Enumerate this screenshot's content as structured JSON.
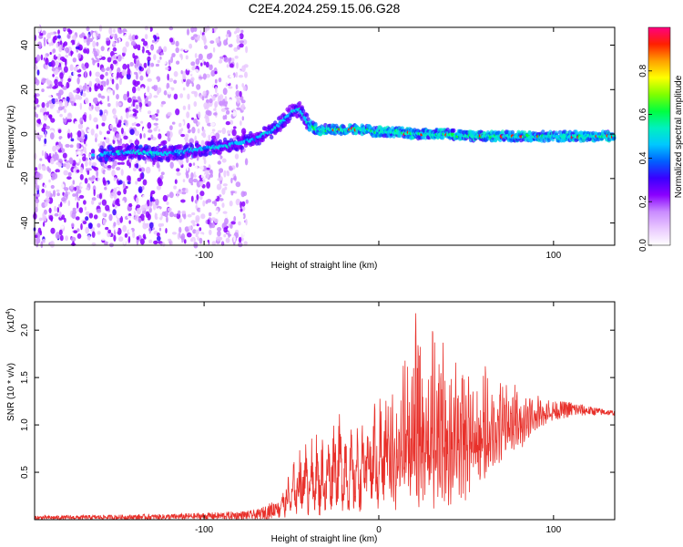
{
  "figure": {
    "title": "C2E4.2024.259.15.06.G28"
  },
  "chart_data": [
    {
      "type": "heatmap",
      "title": "",
      "xlabel": "Height of straight line (km)",
      "ylabel": "Frequency (Hz)",
      "xlim": [
        -197,
        135
      ],
      "ylim": [
        -50,
        48
      ],
      "xticks": [
        -100,
        0,
        100
      ],
      "xtick_labels": [
        "-100",
        "",
        "100"
      ],
      "yticks": [
        -40,
        -20,
        0,
        20,
        40
      ],
      "ytick_labels": [
        "-40",
        "-20",
        "0",
        "20",
        "40"
      ],
      "colorbar": {
        "label": "Normalized spectral amplitude",
        "range": [
          0,
          1
        ],
        "ticks": [
          0.0,
          0.2,
          0.4,
          0.6,
          0.8
        ],
        "tick_labels": [
          "0.0",
          "0.2",
          "0.4",
          "0.6",
          "0.8"
        ],
        "colormap": [
          "#ffffff",
          "#e9c8ff",
          "#c98bff",
          "#8a00ff",
          "#3a00ff",
          "#0060ff",
          "#00c8ff",
          "#00f0c0",
          "#00ff40",
          "#80ff00",
          "#ffff00",
          "#ffa000",
          "#ff2000",
          "#ff0080"
        ]
      },
      "ridge": {
        "x": [
          -160,
          -140,
          -125,
          -115,
          -105,
          -95,
          -85,
          -75,
          -70,
          -65,
          -60,
          -55,
          -50,
          -45,
          -40,
          -35,
          -30,
          -20,
          -10,
          0,
          10,
          20,
          30,
          40,
          50,
          60,
          70,
          80,
          90,
          100,
          110,
          120,
          135
        ],
        "y": [
          -9,
          -8,
          -9,
          -8,
          -7,
          -6,
          -5,
          -3,
          -2,
          0,
          2,
          6,
          10,
          11,
          4,
          2,
          2,
          2,
          2,
          1,
          1,
          0,
          0,
          0,
          -1,
          -1,
          -1,
          -1,
          -1,
          -1,
          -1,
          -1,
          -1
        ]
      }
    },
    {
      "type": "line",
      "title": "",
      "xlabel": "Height of straight line (km)",
      "ylabel": "SNR (10 * v/v)",
      "multiplier_label": "(x10",
      "multiplier_exp": "4",
      "multiplier_close": ")",
      "xlim": [
        -197,
        135
      ],
      "ylim": [
        0,
        23000
      ],
      "xticks": [
        -100,
        0,
        100
      ],
      "xtick_labels": [
        "-100",
        "0",
        "100"
      ],
      "yticks": [
        5000,
        10000,
        15000,
        20000
      ],
      "ytick_labels": [
        "0.5",
        "1.0",
        "1.5",
        "2.0"
      ],
      "series": [
        {
          "color": "#e8302a",
          "envelope": {
            "x": [
              -197,
              -120,
              -90,
              -70,
              -60,
              -50,
              -45,
              -40,
              -30,
              -25,
              -20,
              -15,
              -10,
              -5,
              0,
              5,
              10,
              15,
              20,
              25,
              30,
              35,
              40,
              45,
              50,
              55,
              60,
              65,
              70,
              75,
              80,
              85,
              90,
              95,
              100,
              110,
              120,
              135
            ],
            "max": [
              400,
              600,
              800,
              1000,
              2000,
              5500,
              8500,
              9500,
              9000,
              12000,
              11000,
              9500,
              10500,
              12000,
              14500,
              13500,
              16000,
              18000,
              22500,
              20000,
              23000,
              18500,
              20500,
              17000,
              19000,
              15000,
              17500,
              14500,
              15500,
              14000,
              15000,
              14000,
              13000,
              13500,
              12500,
              12500,
              12000,
              11500
            ],
            "min": [
              0,
              0,
              0,
              0,
              100,
              300,
              500,
              400,
              300,
              1500,
              800,
              700,
              800,
              1500,
              200,
              1800,
              800,
              1500,
              300,
              1200,
              200,
              1500,
              400,
              2500,
              1600,
              4000,
              3000,
              5500,
              6000,
              7500,
              7000,
              8500,
              9500,
              10000,
              10500,
              10800,
              11000,
              11000
            ]
          }
        }
      ]
    }
  ]
}
